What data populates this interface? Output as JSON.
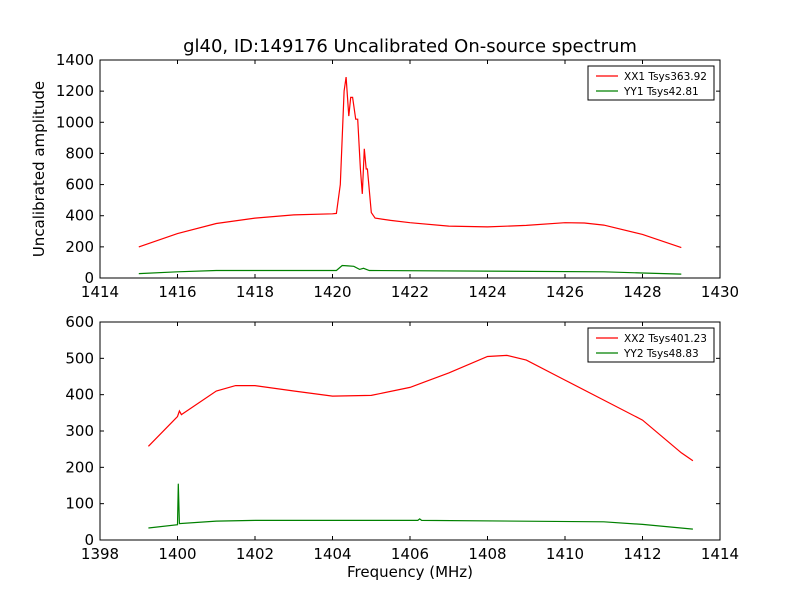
{
  "chart_data": [
    {
      "type": "line",
      "title": "gl40, ID:149176 Uncalibrated On-source spectrum",
      "xlabel": "",
      "ylabel": "Uncalibrated amplitude",
      "xlim": [
        1414,
        1430
      ],
      "ylim": [
        0,
        1400
      ],
      "xticks": [
        1414,
        1416,
        1418,
        1420,
        1422,
        1424,
        1426,
        1428,
        1430
      ],
      "yticks": [
        0,
        200,
        400,
        600,
        800,
        1000,
        1200,
        1400
      ],
      "legend_position": "top-right",
      "series": [
        {
          "name": "XX1 Tsys363.92",
          "color": "#ff0000",
          "x": [
            1415,
            1416,
            1417,
            1418,
            1419,
            1420,
            1420.1,
            1420.2,
            1420.3,
            1420.35,
            1420.42,
            1420.47,
            1420.52,
            1420.6,
            1420.65,
            1420.72,
            1420.77,
            1420.82,
            1420.87,
            1420.9,
            1421.0,
            1421.1,
            1421.5,
            1422,
            1423,
            1424,
            1425,
            1426,
            1426.5,
            1427,
            1428,
            1429
          ],
          "y": [
            200,
            285,
            350,
            385,
            405,
            412,
            415,
            600,
            1200,
            1290,
            1040,
            1160,
            1160,
            1020,
            1020,
            700,
            540,
            830,
            700,
            700,
            420,
            385,
            370,
            355,
            333,
            328,
            338,
            355,
            353,
            340,
            280,
            195
          ]
        },
        {
          "name": "YY1 Tsys42.81",
          "color": "#008000",
          "x": [
            1415,
            1416,
            1417,
            1420.1,
            1420.25,
            1420.4,
            1420.55,
            1420.7,
            1420.8,
            1420.95,
            1427,
            1428,
            1429
          ],
          "y": [
            28,
            40,
            48,
            48,
            80,
            78,
            75,
            55,
            62,
            48,
            40,
            32,
            25
          ]
        }
      ]
    },
    {
      "type": "line",
      "title": "",
      "xlabel": "Frequency (MHz)",
      "ylabel": "",
      "xlim": [
        1398,
        1414
      ],
      "ylim": [
        0,
        600
      ],
      "xticks": [
        1398,
        1400,
        1402,
        1404,
        1406,
        1408,
        1410,
        1412,
        1414
      ],
      "yticks": [
        0,
        100,
        200,
        300,
        400,
        500,
        600
      ],
      "legend_position": "top-right",
      "series": [
        {
          "name": "XX2 Tsys401.23",
          "color": "#ff0000",
          "x": [
            1399.25,
            1400,
            1400.05,
            1400.1,
            1401,
            1401.5,
            1402,
            1403,
            1404,
            1405,
            1406,
            1407,
            1408,
            1408.5,
            1409,
            1410,
            1411,
            1412,
            1413,
            1413.3
          ],
          "y": [
            258,
            340,
            355,
            345,
            410,
            425,
            425,
            410,
            396,
            398,
            420,
            460,
            505,
            508,
            495,
            440,
            385,
            330,
            240,
            218
          ]
        },
        {
          "name": "YY2 Tsys48.83",
          "color": "#008000",
          "x": [
            1399.25,
            1400,
            1400.02,
            1400.05,
            1401,
            1402,
            1406.2,
            1406.25,
            1406.3,
            1411,
            1412,
            1413.3
          ],
          "y": [
            33,
            42,
            155,
            45,
            52,
            54,
            54,
            58,
            54,
            50,
            43,
            30
          ]
        }
      ]
    }
  ]
}
